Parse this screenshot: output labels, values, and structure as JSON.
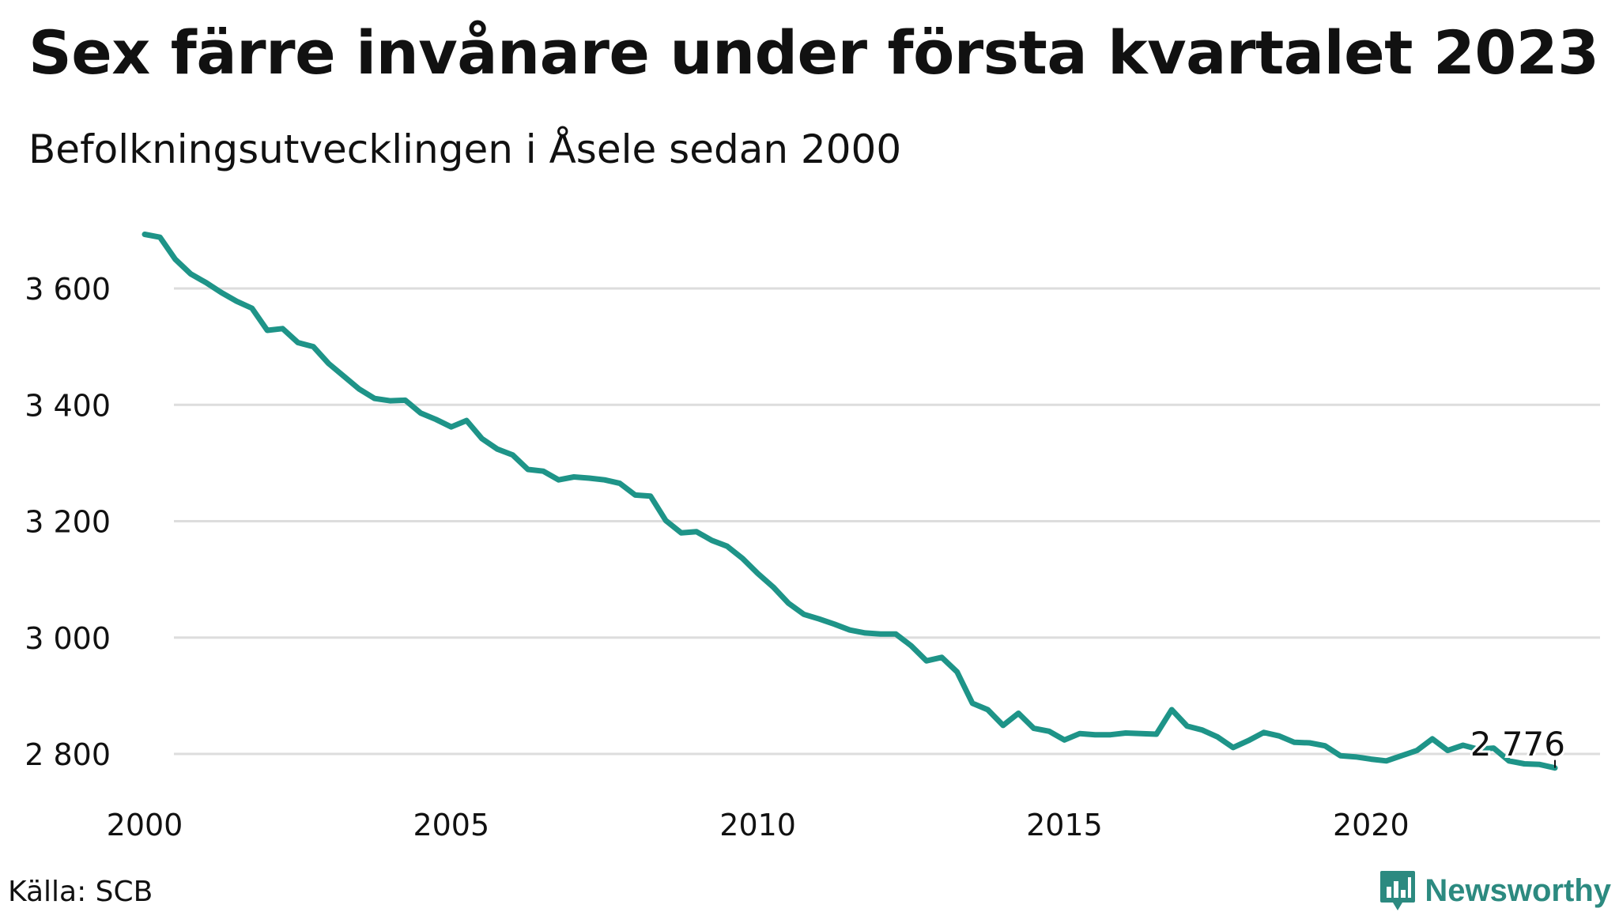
{
  "title": "Sex färre invånare under första kvartalet 2023",
  "subtitle": "Befolkningsutvecklingen i Åsele sedan 2000",
  "source": "Källa: SCB",
  "brand": {
    "name": "Newsworthy",
    "logo_icon": "newsworthy-chart-icon",
    "color": "#2c8a80"
  },
  "colors": {
    "line": "#1e9488",
    "grid": "#dddddd",
    "text": "#111111"
  },
  "chart_data": {
    "type": "line",
    "title": "Sex färre invånare under första kvartalet 2023",
    "subtitle": "Befolkningsutvecklingen i Åsele sedan 2000",
    "xlabel": "",
    "ylabel": "",
    "xlim": [
      2000.0,
      2024.0
    ],
    "ylim": [
      2770,
      3700
    ],
    "x_ticks": [
      2000,
      2005,
      2010,
      2015,
      2020
    ],
    "x_tick_labels": [
      "2000",
      "2005",
      "2010",
      "2015",
      "2020"
    ],
    "y_ticks": [
      2800,
      3000,
      3200,
      3400,
      3600
    ],
    "y_tick_labels": [
      "2 800",
      "3 000",
      "3 200",
      "3 400",
      "3 600"
    ],
    "grid": "horizontal",
    "end_label": "2 776",
    "series": [
      {
        "x": [
          2000.0,
          2000.25,
          2000.5,
          2000.75,
          2001.0,
          2001.25,
          2001.5,
          2001.75,
          2002.0,
          2002.25,
          2002.5,
          2002.75,
          2003.0,
          2003.25,
          2003.5,
          2003.75,
          2004.0,
          2004.25,
          2004.5,
          2004.75,
          2005.0,
          2005.25,
          2005.5,
          2005.75,
          2006.0,
          2006.25,
          2006.5,
          2006.75,
          2007.0,
          2007.25,
          2007.5,
          2007.75,
          2008.0,
          2008.25,
          2008.5,
          2008.75,
          2009.0,
          2009.25,
          2009.5,
          2009.75,
          2010.0,
          2010.25,
          2010.5,
          2010.75,
          2011.0,
          2011.25,
          2011.5,
          2011.75,
          2012.0,
          2012.25,
          2012.5,
          2012.75,
          2013.0,
          2013.25,
          2013.5,
          2013.75,
          2014.0,
          2014.25,
          2014.5,
          2014.75,
          2015.0,
          2015.25,
          2015.5,
          2015.75,
          2016.0,
          2016.25,
          2016.5,
          2016.75,
          2017.0,
          2017.25,
          2017.5,
          2017.75,
          2018.0,
          2018.25,
          2018.5,
          2018.75,
          2019.0,
          2019.25,
          2019.5,
          2019.75,
          2020.0,
          2020.25,
          2020.5,
          2020.75,
          2021.0,
          2021.25,
          2021.5,
          2021.75,
          2022.0,
          2022.25,
          2022.5,
          2022.75,
          2023.0
        ],
        "values": [
          3693,
          3688,
          3650,
          3625,
          3610,
          3593,
          3578,
          3566,
          3528,
          3531,
          3507,
          3500,
          3471,
          3449,
          3427,
          3411,
          3407,
          3408,
          3386,
          3375,
          3362,
          3373,
          3342,
          3324,
          3314,
          3289,
          3286,
          3271,
          3276,
          3274,
          3271,
          3265,
          3245,
          3243,
          3201,
          3180,
          3182,
          3167,
          3157,
          3136,
          3110,
          3087,
          3059,
          3040,
          3032,
          3023,
          3013,
          3008,
          3006,
          3006,
          2986,
          2960,
          2966,
          2941,
          2887,
          2876,
          2849,
          2870,
          2844,
          2839,
          2824,
          2835,
          2833,
          2833,
          2836,
          2835,
          2834,
          2876,
          2848,
          2841,
          2829,
          2811,
          2823,
          2837,
          2831,
          2820,
          2819,
          2814,
          2797,
          2795,
          2791,
          2788,
          2797,
          2806,
          2826,
          2806,
          2815,
          2808,
          2810,
          2788,
          2783,
          2782,
          2776
        ]
      }
    ]
  }
}
